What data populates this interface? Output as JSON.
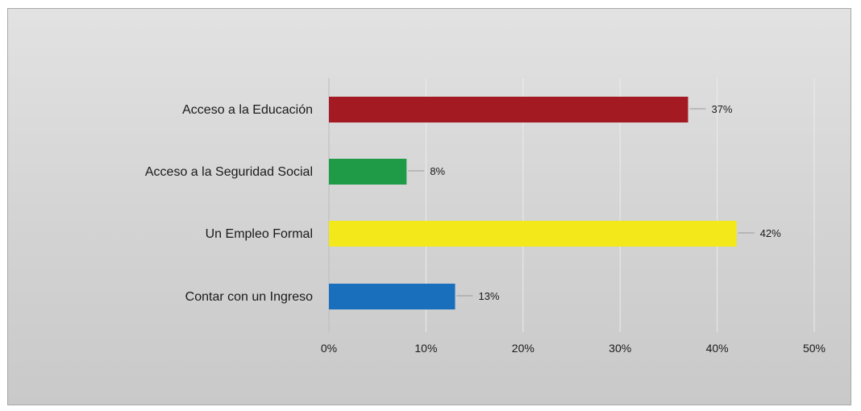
{
  "chart_data": {
    "type": "bar",
    "orientation": "horizontal",
    "categories": [
      "Acceso a la Educación",
      "Acceso a la Seguridad Social",
      "Un Empleo Formal",
      "Contar con un Ingreso"
    ],
    "values": [
      37,
      8,
      42,
      13
    ],
    "data_labels": [
      "37%",
      "8%",
      "42%",
      "13%"
    ],
    "colors": [
      "#a31a23",
      "#1f9a47",
      "#f2e81a",
      "#1a6fbd"
    ],
    "xlim": [
      0,
      50
    ],
    "x_ticks": [
      0,
      10,
      20,
      30,
      40,
      50
    ],
    "x_tick_labels": [
      "0%",
      "10%",
      "20%",
      "30%",
      "40%",
      "50%"
    ],
    "grid": true,
    "legend": "none"
  }
}
